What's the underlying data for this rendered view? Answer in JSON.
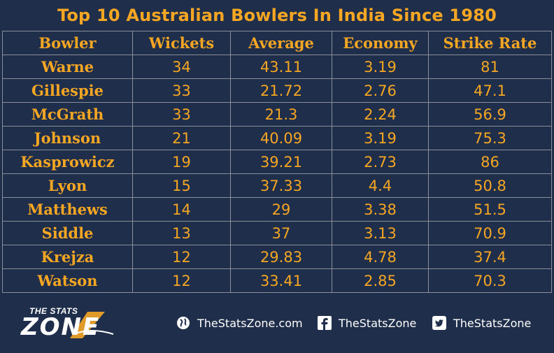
{
  "title": "Top 10 Australian Bowlers In India Since 1980",
  "table": {
    "headers": [
      "Bowler",
      "Wickets",
      "Average",
      "Economy",
      "Strike Rate"
    ],
    "rows": [
      [
        "Warne",
        "34",
        "43.11",
        "3.19",
        "81"
      ],
      [
        "Gillespie",
        "33",
        "21.72",
        "2.76",
        "47.1"
      ],
      [
        "McGrath",
        "33",
        "21.3",
        "2.24",
        "56.9"
      ],
      [
        "Johnson",
        "21",
        "40.09",
        "3.19",
        "75.3"
      ],
      [
        "Kasprowicz",
        "19",
        "39.21",
        "2.73",
        "86"
      ],
      [
        "Lyon",
        "15",
        "37.33",
        "4.4",
        "50.8"
      ],
      [
        "Matthews",
        "14",
        "29",
        "3.38",
        "51.5"
      ],
      [
        "Siddle",
        "13",
        "37",
        "3.13",
        "70.9"
      ],
      [
        "Krejza",
        "12",
        "29.83",
        "4.78",
        "37.4"
      ],
      [
        "Watson",
        "12",
        "33.41",
        "2.85",
        "70.3"
      ]
    ]
  },
  "footer": {
    "logo_line1": "THE STATS",
    "logo_line2": "ZONE",
    "website": "TheStatsZone.com",
    "facebook": "TheStatsZone",
    "twitter": "TheStatsZone"
  },
  "colors": {
    "background": "#1f2e4a",
    "accent": "#f5a623",
    "grid": "#8a8f99"
  },
  "icons": [
    "globe-icon",
    "facebook-icon",
    "twitter-icon"
  ]
}
